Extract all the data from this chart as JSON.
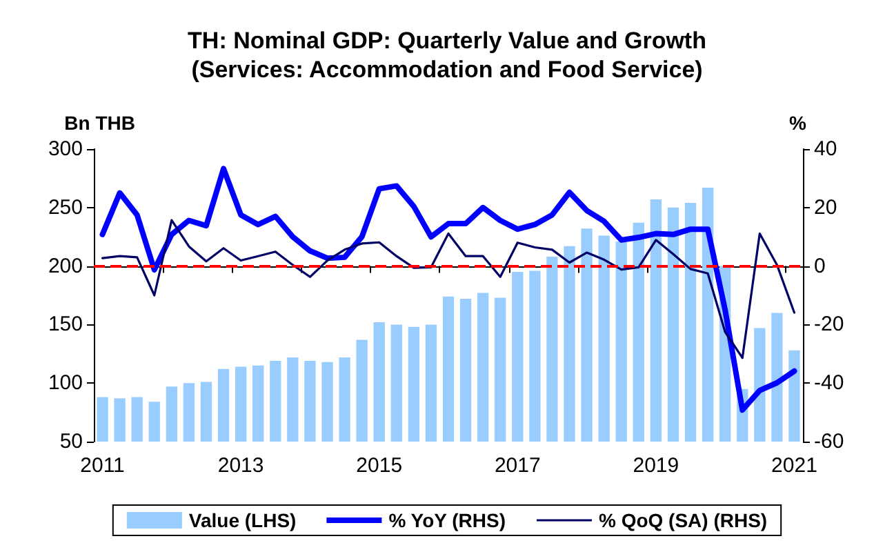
{
  "chart_data": {
    "type": "bar",
    "title": "TH: Nominal GDP: Quarterly Value and Growth\n(Services: Accommodation and Food Service)",
    "ylabel": "Bn THB",
    "y2label": "%",
    "categories": [
      "2011",
      null,
      null,
      null,
      null,
      null,
      null,
      null,
      "2013",
      null,
      null,
      null,
      null,
      null,
      null,
      null,
      "2015",
      null,
      null,
      null,
      null,
      null,
      null,
      null,
      "2017",
      null,
      null,
      null,
      null,
      null,
      null,
      null,
      "2019",
      null,
      null,
      null,
      null,
      null,
      null,
      null,
      "2021"
    ],
    "series": [
      {
        "name": "Value (LHS)",
        "color": "#99ccff",
        "values": [
          88,
          87,
          88,
          84,
          97,
          100,
          101,
          112,
          114,
          115,
          119,
          122,
          119,
          118,
          122,
          137,
          152,
          150,
          148,
          150,
          174,
          172,
          177,
          173,
          195,
          196,
          208,
          217,
          232,
          226,
          221,
          237,
          257,
          250,
          254,
          267,
          200,
          95,
          147,
          160,
          128
        ]
      },
      {
        "name": "% YoY (RHS)",
        "type": "line",
        "axis": "y2",
        "color": "#0000ff",
        "values": [
          10.8,
          25,
          17.5,
          -1.3,
          10.8,
          15.6,
          13.8,
          33.3,
          17.5,
          14.2,
          17,
          10,
          5.2,
          2.7,
          3,
          10,
          26.4,
          27.4,
          20.4,
          10,
          14.5,
          14.5,
          20,
          15.6,
          12.6,
          14.2,
          17.5,
          25.2,
          19,
          15.3,
          8.9,
          9.8,
          11.1,
          10.8,
          12.6,
          12.6,
          -15,
          -49.2,
          -42.5,
          -39.9,
          -35.9
        ]
      },
      {
        "name": "% QoQ (SA) (RHS)",
        "type": "line",
        "axis": "y2",
        "color": "#000066",
        "values": [
          2.7,
          3.4,
          3,
          -10,
          15.7,
          6.7,
          1.6,
          6.1,
          1.9,
          3.4,
          4.9,
          0.4,
          -3.7,
          1.9,
          5.6,
          7.7,
          8.1,
          3.4,
          -0.6,
          -0.4,
          11.1,
          3.4,
          3.4,
          -3.7,
          8,
          6.4,
          5.6,
          1.2,
          4.6,
          2.2,
          -1.2,
          -0.4,
          8.9,
          4.1,
          -1,
          -2.5,
          -22.5,
          -31.4,
          11.1,
          0.4,
          -15.9
        ]
      }
    ],
    "ylim": [
      50,
      300
    ],
    "yticks": [
      50,
      100,
      150,
      200,
      250,
      300
    ],
    "y2lim": [
      -60,
      40
    ],
    "y2ticks": [
      -60,
      -40,
      -20,
      0,
      20,
      40
    ],
    "ref_lines": [
      {
        "axis": "y2",
        "value": 0,
        "color": "#ff0000",
        "line_style": "dashed"
      }
    ],
    "legend": "bottom",
    "grid": false,
    "marker": "none"
  }
}
